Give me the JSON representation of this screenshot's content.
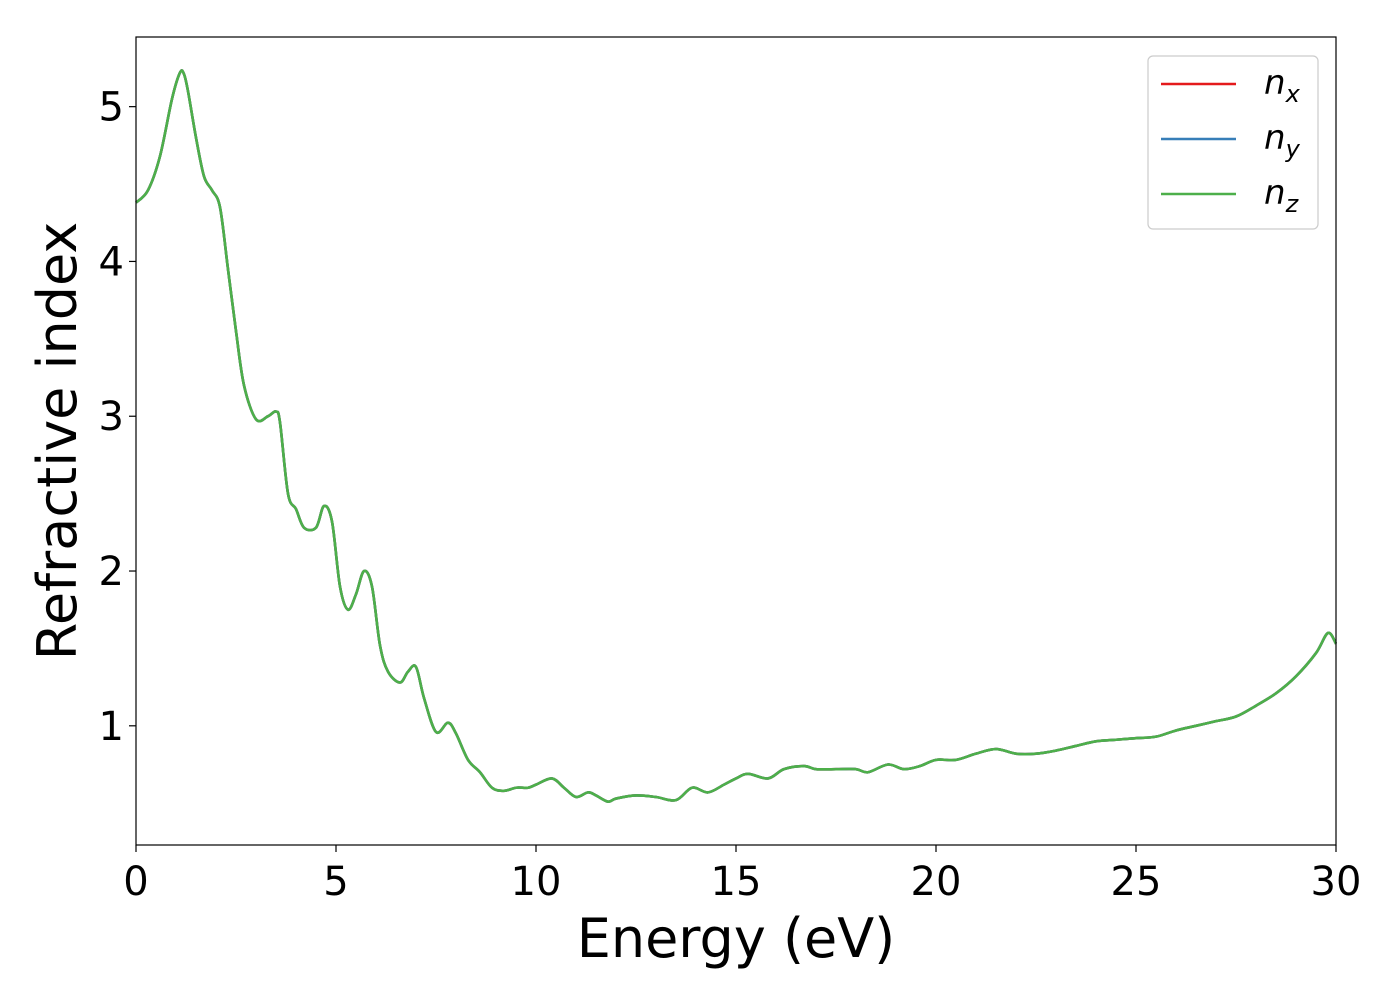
{
  "chart_data": {
    "type": "line",
    "xlabel": "Energy (eV)",
    "ylabel": "Refractive index",
    "xlim": [
      0,
      30
    ],
    "ylim": [
      0.23,
      5.45
    ],
    "xticks": [
      0,
      5,
      10,
      15,
      20,
      25,
      30
    ],
    "yticks": [
      1,
      2,
      3,
      4,
      5
    ],
    "grid": false,
    "legend_position": "top-right",
    "series": [
      {
        "name": "n",
        "sub": "x",
        "color": "#e41a1c",
        "x": [
          0,
          0.3,
          0.6,
          0.9,
          1.1,
          1.2,
          1.3,
          1.5,
          1.7,
          1.9,
          2.1,
          2.3,
          2.5,
          2.7,
          3.0,
          3.3,
          3.5,
          3.6,
          3.8,
          4.0,
          4.2,
          4.5,
          4.7,
          4.9,
          5.1,
          5.3,
          5.5,
          5.7,
          5.9,
          6.1,
          6.3,
          6.6,
          6.8,
          7.0,
          7.2,
          7.5,
          7.8,
          8.0,
          8.3,
          8.6,
          8.9,
          9.2,
          9.5,
          9.8,
          10.0,
          10.4,
          10.7,
          11.0,
          11.3,
          11.5,
          11.8,
          12.0,
          12.5,
          13.0,
          13.5,
          13.9,
          14.3,
          14.7,
          15.0,
          15.3,
          15.8,
          16.2,
          16.7,
          17.0,
          17.5,
          18.0,
          18.3,
          18.8,
          19.2,
          19.6,
          20.0,
          20.5,
          21.0,
          21.5,
          22.0,
          22.5,
          23.0,
          23.5,
          24.0,
          24.5,
          25.0,
          25.5,
          26.0,
          26.5,
          27.0,
          27.5,
          28.0,
          28.5,
          29.0,
          29.5,
          29.8,
          30.0
        ],
        "y": [
          4.38,
          4.46,
          4.68,
          5.05,
          5.22,
          5.21,
          5.1,
          4.8,
          4.55,
          4.46,
          4.35,
          3.95,
          3.55,
          3.2,
          2.98,
          3.0,
          3.03,
          2.96,
          2.5,
          2.4,
          2.28,
          2.28,
          2.42,
          2.32,
          1.9,
          1.75,
          1.85,
          2.0,
          1.9,
          1.52,
          1.35,
          1.28,
          1.35,
          1.38,
          1.18,
          0.96,
          1.02,
          0.95,
          0.78,
          0.7,
          0.6,
          0.58,
          0.6,
          0.6,
          0.62,
          0.66,
          0.6,
          0.54,
          0.57,
          0.55,
          0.51,
          0.53,
          0.55,
          0.54,
          0.52,
          0.6,
          0.57,
          0.62,
          0.66,
          0.69,
          0.66,
          0.72,
          0.74,
          0.72,
          0.72,
          0.72,
          0.7,
          0.75,
          0.72,
          0.74,
          0.78,
          0.78,
          0.82,
          0.85,
          0.82,
          0.82,
          0.84,
          0.87,
          0.9,
          0.91,
          0.92,
          0.93,
          0.97,
          1.0,
          1.03,
          1.06,
          1.13,
          1.21,
          1.32,
          1.47,
          1.6,
          1.53
        ]
      },
      {
        "name": "n",
        "sub": "y",
        "color": "#377eb8",
        "x": [
          0,
          0.3,
          0.6,
          0.9,
          1.1,
          1.2,
          1.3,
          1.5,
          1.7,
          1.9,
          2.1,
          2.3,
          2.5,
          2.7,
          3.0,
          3.3,
          3.5,
          3.6,
          3.8,
          4.0,
          4.2,
          4.5,
          4.7,
          4.9,
          5.1,
          5.3,
          5.5,
          5.7,
          5.9,
          6.1,
          6.3,
          6.6,
          6.8,
          7.0,
          7.2,
          7.5,
          7.8,
          8.0,
          8.3,
          8.6,
          8.9,
          9.2,
          9.5,
          9.8,
          10.0,
          10.4,
          10.7,
          11.0,
          11.3,
          11.5,
          11.8,
          12.0,
          12.5,
          13.0,
          13.5,
          13.9,
          14.3,
          14.7,
          15.0,
          15.3,
          15.8,
          16.2,
          16.7,
          17.0,
          17.5,
          18.0,
          18.3,
          18.8,
          19.2,
          19.6,
          20.0,
          20.5,
          21.0,
          21.5,
          22.0,
          22.5,
          23.0,
          23.5,
          24.0,
          24.5,
          25.0,
          25.5,
          26.0,
          26.5,
          27.0,
          27.5,
          28.0,
          28.5,
          29.0,
          29.5,
          29.8,
          30.0
        ],
        "y": [
          4.38,
          4.46,
          4.68,
          5.05,
          5.22,
          5.21,
          5.1,
          4.8,
          4.55,
          4.46,
          4.35,
          3.95,
          3.55,
          3.2,
          2.98,
          3.0,
          3.03,
          2.96,
          2.5,
          2.4,
          2.28,
          2.28,
          2.42,
          2.32,
          1.9,
          1.75,
          1.85,
          2.0,
          1.9,
          1.52,
          1.35,
          1.28,
          1.35,
          1.38,
          1.18,
          0.96,
          1.02,
          0.95,
          0.78,
          0.7,
          0.6,
          0.58,
          0.6,
          0.6,
          0.62,
          0.66,
          0.6,
          0.54,
          0.57,
          0.55,
          0.51,
          0.53,
          0.55,
          0.54,
          0.52,
          0.6,
          0.57,
          0.62,
          0.66,
          0.69,
          0.66,
          0.72,
          0.74,
          0.72,
          0.72,
          0.72,
          0.7,
          0.75,
          0.72,
          0.74,
          0.78,
          0.78,
          0.82,
          0.85,
          0.82,
          0.82,
          0.84,
          0.87,
          0.9,
          0.91,
          0.92,
          0.93,
          0.97,
          1.0,
          1.03,
          1.06,
          1.13,
          1.21,
          1.32,
          1.47,
          1.6,
          1.53
        ]
      },
      {
        "name": "n",
        "sub": "z",
        "color": "#4daf4a",
        "x": [
          0,
          0.3,
          0.6,
          0.9,
          1.1,
          1.2,
          1.3,
          1.5,
          1.7,
          1.9,
          2.1,
          2.3,
          2.5,
          2.7,
          3.0,
          3.3,
          3.5,
          3.6,
          3.8,
          4.0,
          4.2,
          4.5,
          4.7,
          4.9,
          5.1,
          5.3,
          5.5,
          5.7,
          5.9,
          6.1,
          6.3,
          6.6,
          6.8,
          7.0,
          7.2,
          7.5,
          7.8,
          8.0,
          8.3,
          8.6,
          8.9,
          9.2,
          9.5,
          9.8,
          10.0,
          10.4,
          10.7,
          11.0,
          11.3,
          11.5,
          11.8,
          12.0,
          12.5,
          13.0,
          13.5,
          13.9,
          14.3,
          14.7,
          15.0,
          15.3,
          15.8,
          16.2,
          16.7,
          17.0,
          17.5,
          18.0,
          18.3,
          18.8,
          19.2,
          19.6,
          20.0,
          20.5,
          21.0,
          21.5,
          22.0,
          22.5,
          23.0,
          23.5,
          24.0,
          24.5,
          25.0,
          25.5,
          26.0,
          26.5,
          27.0,
          27.5,
          28.0,
          28.5,
          29.0,
          29.5,
          29.8,
          30.0
        ],
        "y": [
          4.38,
          4.46,
          4.68,
          5.05,
          5.22,
          5.21,
          5.1,
          4.8,
          4.55,
          4.46,
          4.35,
          3.95,
          3.55,
          3.2,
          2.98,
          3.0,
          3.03,
          2.96,
          2.5,
          2.4,
          2.28,
          2.28,
          2.42,
          2.32,
          1.9,
          1.75,
          1.85,
          2.0,
          1.9,
          1.52,
          1.35,
          1.28,
          1.35,
          1.38,
          1.18,
          0.96,
          1.02,
          0.95,
          0.78,
          0.7,
          0.6,
          0.58,
          0.6,
          0.6,
          0.62,
          0.66,
          0.6,
          0.54,
          0.57,
          0.55,
          0.51,
          0.53,
          0.55,
          0.54,
          0.52,
          0.6,
          0.57,
          0.62,
          0.66,
          0.69,
          0.66,
          0.72,
          0.74,
          0.72,
          0.72,
          0.72,
          0.7,
          0.75,
          0.72,
          0.74,
          0.78,
          0.78,
          0.82,
          0.85,
          0.82,
          0.82,
          0.84,
          0.87,
          0.9,
          0.91,
          0.92,
          0.93,
          0.97,
          1.0,
          1.03,
          1.06,
          1.13,
          1.21,
          1.32,
          1.47,
          1.6,
          1.53
        ]
      }
    ]
  }
}
